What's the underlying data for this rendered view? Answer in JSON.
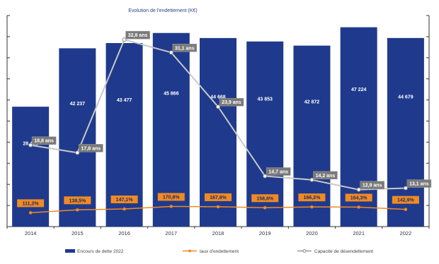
{
  "chart_data": {
    "type": "bar",
    "title": "Evolution de l'endettement (K€)",
    "categories": [
      "2014",
      "2015",
      "2016",
      "2017",
      "2018",
      "2019",
      "2020",
      "2021",
      "2022"
    ],
    "series": [
      {
        "name": "Encours de dette 2022",
        "type": "bar",
        "values": [
          28401,
          42237,
          43477,
          45866,
          44668,
          43853,
          42872,
          47224,
          44679
        ],
        "labels": [
          "28 401",
          "42 237",
          "43 477",
          "45 866",
          "44 668",
          "43 853",
          "42 872",
          "47 224",
          "44 679"
        ]
      },
      {
        "name": "taux d'endettement",
        "type": "line",
        "values": [
          111.2,
          138.5,
          147.1,
          170.8,
          167.8,
          158.8,
          166.2,
          164.3,
          142.9
        ],
        "labels": [
          "111,2%",
          "138,5%",
          "147,1%",
          "170,8%",
          "167,8%",
          "158,8%",
          "166,2%",
          "164,3%",
          "142,9%"
        ]
      },
      {
        "name": "Capacité de désendettement",
        "type": "line",
        "values": [
          18.8,
          17.8,
          32.8,
          31.1,
          23.9,
          14.7,
          14.2,
          12.9,
          13.1
        ],
        "labels": [
          "18,8 ans",
          "17,8 ans",
          "32,8 ans",
          "31,1 ans",
          "23,9 ans",
          "14,7 ans",
          "14,2 ans",
          "12,9 ans",
          "13,1 ans"
        ]
      }
    ],
    "colors": {
      "bar": "#1f3a8c",
      "rate": "#f08a24",
      "capacity": "#c8c8c8",
      "axis": "#333333"
    },
    "legend_position": "bottom",
    "grid": false
  }
}
